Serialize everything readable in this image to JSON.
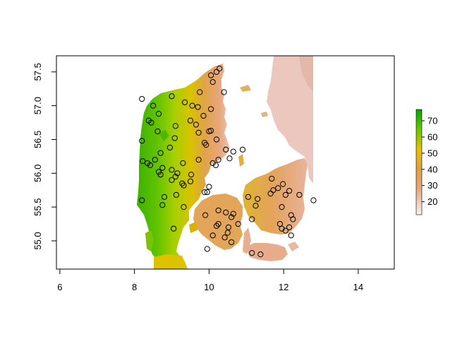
{
  "chart_data": {
    "type": "raster-map",
    "title": "",
    "xlabel": "",
    "ylabel": "",
    "xlim": [
      6,
      15
    ],
    "ylim": [
      54.52,
      57.74
    ],
    "x_ticks": [
      6,
      8,
      10,
      12,
      14
    ],
    "y_ticks": [
      55.0,
      55.5,
      56.0,
      56.5,
      57.0,
      57.5
    ],
    "x_tick_labels": [
      "6",
      "8",
      "10",
      "12",
      "14"
    ],
    "y_tick_labels": [
      "55.0",
      "55.5",
      "56.0",
      "56.5",
      "57.0",
      "57.5"
    ],
    "legend": {
      "type": "continuous colorbar",
      "placement": "right",
      "range": [
        12,
        77
      ],
      "ticks": [
        20,
        30,
        40,
        50,
        60,
        70
      ],
      "tick_labels": [
        "20",
        "30",
        "40",
        "50",
        "60",
        "70"
      ],
      "colors_low_to_high": [
        "#F2F2F2",
        "#E6A67A",
        "#E6C100",
        "#63C600",
        "#00A600"
      ]
    },
    "grid": false,
    "series": [
      {
        "type": "points",
        "marker": "open circle",
        "color": "#000000",
        "points": [
          [
            8.2,
            57.1
          ],
          [
            8.5,
            57.0
          ],
          [
            9.0,
            57.14
          ],
          [
            9.35,
            57.05
          ],
          [
            9.75,
            57.2
          ],
          [
            10.05,
            57.45
          ],
          [
            10.2,
            57.5
          ],
          [
            10.28,
            57.55
          ],
          [
            10.1,
            57.35
          ],
          [
            10.4,
            57.2
          ],
          [
            9.55,
            57.0
          ],
          [
            9.7,
            56.98
          ],
          [
            9.85,
            56.85
          ],
          [
            10.05,
            56.95
          ],
          [
            8.38,
            56.78
          ],
          [
            8.45,
            56.75
          ],
          [
            8.65,
            56.88
          ],
          [
            9.1,
            56.7
          ],
          [
            9.5,
            56.78
          ],
          [
            9.65,
            56.72
          ],
          [
            10.0,
            56.62
          ],
          [
            10.05,
            56.63
          ],
          [
            9.72,
            56.6
          ],
          [
            10.2,
            56.5
          ],
          [
            8.62,
            56.62
          ],
          [
            8.2,
            56.48
          ],
          [
            8.7,
            56.3
          ],
          [
            9.08,
            56.52
          ],
          [
            8.95,
            56.38
          ],
          [
            9.88,
            56.45
          ],
          [
            9.92,
            56.42
          ],
          [
            10.45,
            56.35
          ],
          [
            10.9,
            56.35
          ],
          [
            8.55,
            56.2
          ],
          [
            8.42,
            56.12
          ],
          [
            8.75,
            56.08
          ],
          [
            8.22,
            56.18
          ],
          [
            8.35,
            56.15
          ],
          [
            8.65,
            56.02
          ],
          [
            8.7,
            55.98
          ],
          [
            9.0,
            56.05
          ],
          [
            9.15,
            56.0
          ],
          [
            9.3,
            56.15
          ],
          [
            9.52,
            55.98
          ],
          [
            9.72,
            56.2
          ],
          [
            10.1,
            56.15
          ],
          [
            10.18,
            56.12
          ],
          [
            10.25,
            56.2
          ],
          [
            10.55,
            56.22
          ],
          [
            10.65,
            56.32
          ],
          [
            9.5,
            55.88
          ],
          [
            9.32,
            55.82
          ],
          [
            9.28,
            55.85
          ],
          [
            9.1,
            55.95
          ],
          [
            9.0,
            55.9
          ],
          [
            10.0,
            55.8
          ],
          [
            9.95,
            55.72
          ],
          [
            9.88,
            55.72
          ],
          [
            8.2,
            55.6
          ],
          [
            8.75,
            55.53
          ],
          [
            8.8,
            55.65
          ],
          [
            9.12,
            55.68
          ],
          [
            9.32,
            55.5
          ],
          [
            9.9,
            55.38
          ],
          [
            10.25,
            55.45
          ],
          [
            10.45,
            55.42
          ],
          [
            10.6,
            55.35
          ],
          [
            10.65,
            55.4
          ],
          [
            10.78,
            55.25
          ],
          [
            10.52,
            55.2
          ],
          [
            10.25,
            55.25
          ],
          [
            10.2,
            55.22
          ],
          [
            10.1,
            55.08
          ],
          [
            10.42,
            55.05
          ],
          [
            10.5,
            55.12
          ],
          [
            10.6,
            54.98
          ],
          [
            9.95,
            54.88
          ],
          [
            9.05,
            55.18
          ],
          [
            11.05,
            55.65
          ],
          [
            11.3,
            55.62
          ],
          [
            11.15,
            55.32
          ],
          [
            11.25,
            55.52
          ],
          [
            11.65,
            55.7
          ],
          [
            11.72,
            55.75
          ],
          [
            11.68,
            55.92
          ],
          [
            11.85,
            55.78
          ],
          [
            11.98,
            55.84
          ],
          [
            12.05,
            55.68
          ],
          [
            12.15,
            55.74
          ],
          [
            12.42,
            55.68
          ],
          [
            12.8,
            55.6
          ],
          [
            11.95,
            55.5
          ],
          [
            12.2,
            55.38
          ],
          [
            12.25,
            55.32
          ],
          [
            11.9,
            55.25
          ],
          [
            11.95,
            55.18
          ],
          [
            12.15,
            55.2
          ],
          [
            12.05,
            55.15
          ],
          [
            12.2,
            55.08
          ],
          [
            11.15,
            54.82
          ],
          [
            11.38,
            54.8
          ]
        ]
      }
    ]
  }
}
